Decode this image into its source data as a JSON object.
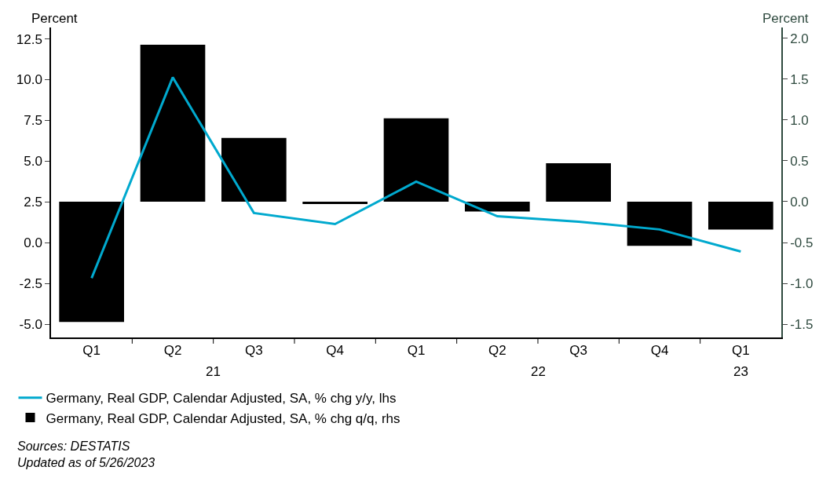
{
  "chart_data": {
    "type": "bar",
    "ylabel": "Percent",
    "y2label": "Percent",
    "categories": [
      "Q1",
      "Q2",
      "Q3",
      "Q4",
      "Q1",
      "Q2",
      "Q3",
      "Q4",
      "Q1"
    ],
    "series": [
      {
        "name": "Germany, Real GDP, Calendar Adjusted, SA, % chg q/q, rhs",
        "axis": "y2",
        "color": "#000000",
        "values": [
          -1.47,
          1.92,
          0.78,
          -0.03,
          1.02,
          -0.12,
          0.47,
          -0.54,
          -0.34
        ]
      },
      {
        "name": "Germany, Real GDP, Calendar Adjusted, SA, % chg y/y, lhs",
        "type": "line",
        "color": "#00a9ce",
        "values": [
          -2.16,
          10.14,
          1.83,
          1.15,
          3.75,
          1.63,
          1.3,
          0.82,
          -0.53
        ]
      }
    ],
    "ylim": [
      -5.8,
      13.2
    ],
    "yticks": [
      {
        "value": -5,
        "label": "-5.0"
      },
      -2.5,
      {
        "value": 0,
        "label": "0.0"
      },
      2.5,
      {
        "value": 5,
        "label": "5.0"
      },
      7.5,
      {
        "value": 10,
        "label": "10.0"
      },
      12.5
    ],
    "y2lim": [
      -1.66,
      2.13
    ],
    "y2ticks": [
      -1.5,
      {
        "value": -1,
        "label": "-1.0"
      },
      -0.5,
      {
        "value": 0,
        "label": "0.0"
      },
      0.5,
      {
        "value": 1,
        "label": "1.0"
      },
      1.5,
      {
        "value": 2,
        "label": "2.0"
      }
    ],
    "grid": false,
    "legend": "bottom",
    "marker": "none",
    "line_style": "solid",
    "annotations": [
      "21",
      "22",
      "23",
      "Sources: DESTATIS",
      "Updated as of 5/26/2023"
    ]
  }
}
